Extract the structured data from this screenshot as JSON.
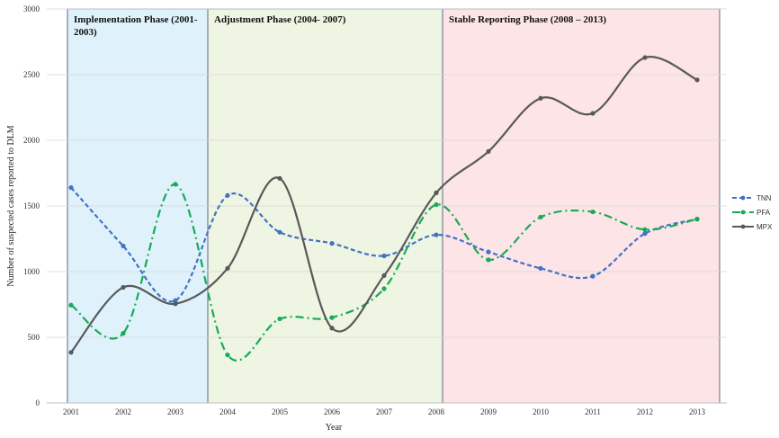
{
  "chart_data": {
    "type": "line",
    "xlabel": "Year",
    "ylabel": "Number of suspected cases reported to DLM",
    "ylim": [
      0,
      3000
    ],
    "yticks": [
      0,
      500,
      1000,
      1500,
      2000,
      2500,
      3000
    ],
    "x": [
      2001,
      2002,
      2003,
      2004,
      2005,
      2006,
      2007,
      2008,
      2009,
      2010,
      2011,
      2012,
      2013
    ],
    "series": [
      {
        "name": "TNN",
        "color": "#4472c4",
        "style": "dashed",
        "values": [
          1640,
          1195,
          780,
          1580,
          1300,
          1215,
          1120,
          1280,
          1150,
          1025,
          965,
          1290,
          1400
        ]
      },
      {
        "name": "PFA",
        "color": "#1aaa55",
        "style": "dashdot",
        "values": [
          745,
          530,
          1665,
          365,
          640,
          650,
          870,
          1510,
          1090,
          1415,
          1455,
          1320,
          1400
        ]
      },
      {
        "name": "MPX",
        "color": "#595959",
        "style": "solid",
        "values": [
          385,
          880,
          755,
          1025,
          1710,
          570,
          970,
          1600,
          1915,
          2320,
          2205,
          2630,
          2460
        ]
      }
    ],
    "phases": [
      {
        "label_lines": [
          "Implementation Phase (2001-",
          "2003)"
        ],
        "from": 2001,
        "to": 2003,
        "fill": "#dff2fb"
      },
      {
        "label_lines": [
          "Adjustment Phase (2004- 2007)"
        ],
        "from": 2003,
        "to": 2007,
        "fill": "#eef5e2"
      },
      {
        "label_lines": [
          "Stable Reporting  Phase (2008 – 2013)"
        ],
        "from": 2007,
        "to": 2013,
        "fill": "#fce4e7"
      }
    ],
    "grid": true,
    "legend_position": "right"
  }
}
